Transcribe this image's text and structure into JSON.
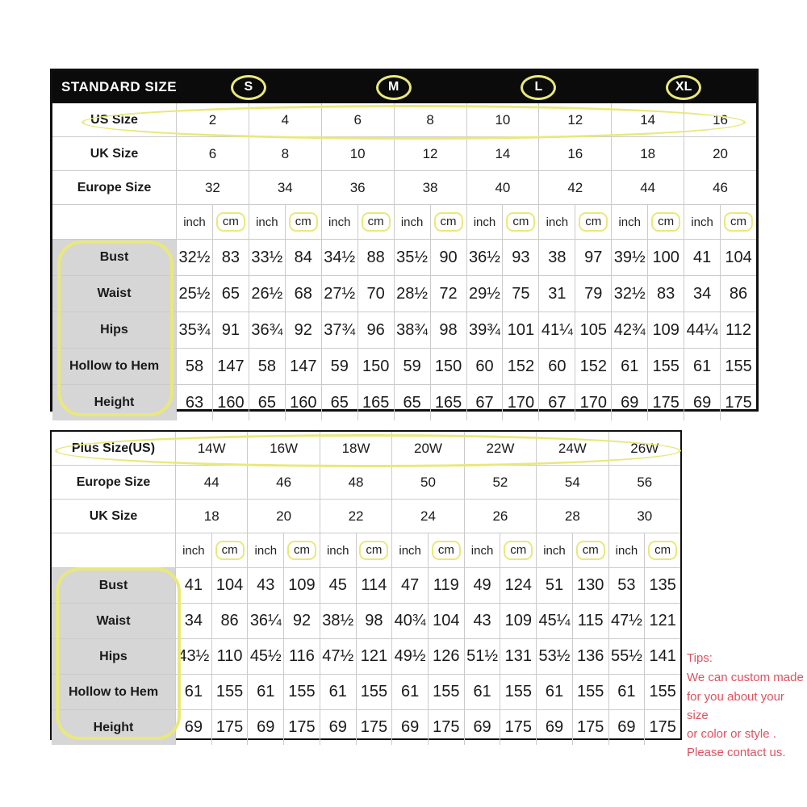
{
  "colors": {
    "highlight_yellow": "#e9e87c",
    "tips_red": "#dd5260",
    "header_black": "#0b0b0b",
    "label_gray": "#d6d6d6"
  },
  "chart_data": [
    {
      "type": "table",
      "title": "STANDARD SIZE",
      "size_groups": [
        "S",
        "M",
        "L",
        "XL"
      ],
      "unit_row": {
        "labels": [
          "inch",
          "cm"
        ]
      },
      "size_rows": [
        {
          "label": "US Size",
          "highlighted": true,
          "values": [
            "2",
            "4",
            "6",
            "8",
            "10",
            "12",
            "14",
            "16"
          ]
        },
        {
          "label": "UK Size",
          "highlighted": false,
          "values": [
            "6",
            "8",
            "10",
            "12",
            "14",
            "16",
            "18",
            "20"
          ]
        },
        {
          "label": "Europe Size",
          "highlighted": false,
          "values": [
            "32",
            "34",
            "36",
            "38",
            "40",
            "42",
            "44",
            "46"
          ]
        }
      ],
      "measurement_rows": [
        {
          "label": "Bust",
          "values": [
            "32½",
            "83",
            "33½",
            "84",
            "34½",
            "88",
            "35½",
            "90",
            "36½",
            "93",
            "38",
            "97",
            "39½",
            "100",
            "41",
            "104"
          ]
        },
        {
          "label": "Waist",
          "values": [
            "25½",
            "65",
            "26½",
            "68",
            "27½",
            "70",
            "28½",
            "72",
            "29½",
            "75",
            "31",
            "79",
            "32½",
            "83",
            "34",
            "86"
          ]
        },
        {
          "label": "Hips",
          "values": [
            "35¾",
            "91",
            "36¾",
            "92",
            "37¾",
            "96",
            "38¾",
            "98",
            "39¾",
            "101",
            "41¼",
            "105",
            "42¾",
            "109",
            "44¼",
            "112"
          ]
        },
        {
          "label": "Hollow to Hem",
          "values": [
            "58",
            "147",
            "58",
            "147",
            "59",
            "150",
            "59",
            "150",
            "60",
            "152",
            "60",
            "152",
            "61",
            "155",
            "61",
            "155"
          ]
        },
        {
          "label": "Height",
          "values": [
            "63",
            "160",
            "65",
            "160",
            "65",
            "165",
            "65",
            "165",
            "67",
            "170",
            "67",
            "170",
            "69",
            "175",
            "69",
            "175"
          ]
        }
      ]
    },
    {
      "type": "table",
      "title": "Plus Size(US)",
      "unit_row": {
        "labels": [
          "inch",
          "cm"
        ]
      },
      "size_rows": [
        {
          "label": "Plus Size(US)",
          "highlighted": true,
          "values": [
            "14W",
            "16W",
            "18W",
            "20W",
            "22W",
            "24W",
            "26W"
          ]
        },
        {
          "label": "Europe Size",
          "highlighted": false,
          "values": [
            "44",
            "46",
            "48",
            "50",
            "52",
            "54",
            "56"
          ]
        },
        {
          "label": "UK Size",
          "highlighted": false,
          "values": [
            "18",
            "20",
            "22",
            "24",
            "26",
            "28",
            "30"
          ]
        }
      ],
      "measurement_rows": [
        {
          "label": "Bust",
          "values": [
            "41",
            "104",
            "43",
            "109",
            "45",
            "114",
            "47",
            "119",
            "49",
            "124",
            "51",
            "130",
            "53",
            "135"
          ]
        },
        {
          "label": "Waist",
          "values": [
            "34",
            "86",
            "36¼",
            "92",
            "38½",
            "98",
            "40¾",
            "104",
            "43",
            "109",
            "45¼",
            "115",
            "47½",
            "121"
          ]
        },
        {
          "label": "Hips",
          "values": [
            "43½",
            "110",
            "45½",
            "116",
            "47½",
            "121",
            "49½",
            "126",
            "51½",
            "131",
            "53½",
            "136",
            "55½",
            "141"
          ]
        },
        {
          "label": "Hollow to Hem",
          "values": [
            "61",
            "155",
            "61",
            "155",
            "61",
            "155",
            "61",
            "155",
            "61",
            "155",
            "61",
            "155",
            "61",
            "155"
          ]
        },
        {
          "label": "Height",
          "values": [
            "69",
            "175",
            "69",
            "175",
            "69",
            "175",
            "69",
            "175",
            "69",
            "175",
            "69",
            "175",
            "69",
            "175"
          ]
        }
      ]
    }
  ],
  "tips": {
    "title": "Tips:",
    "lines": [
      "We can custom made",
      "for you about your size",
      "or color or style .",
      "Please contact us."
    ],
    "color": "#dd5260"
  }
}
